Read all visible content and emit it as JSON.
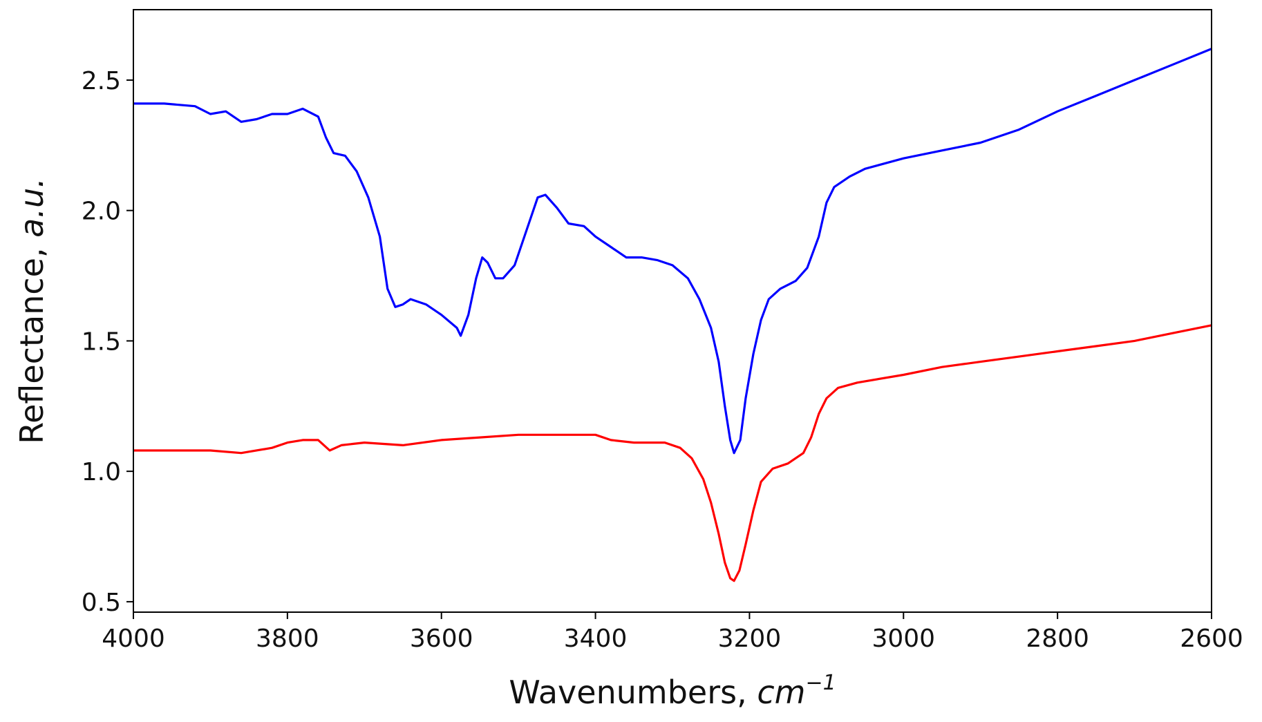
{
  "chart_data": {
    "type": "line",
    "title": "",
    "xlabel": "Wavenumbers, ",
    "xlabel_unit": "cm",
    "xlabel_unit_exp": "−1",
    "ylabel": "Reflectance, ",
    "ylabel_italic": "a.u.",
    "xlim": [
      4000,
      2600
    ],
    "ylim": [
      0.46,
      2.77
    ],
    "x_reversed": true,
    "xticks": [
      4000,
      3800,
      3600,
      3400,
      3200,
      3000,
      2800,
      2600
    ],
    "xtick_labels": [
      "4000",
      "3800",
      "3600",
      "3400",
      "3200",
      "3000",
      "2800",
      "2600"
    ],
    "yticks": [
      0.5,
      1.0,
      1.5,
      2.0,
      2.5
    ],
    "ytick_labels": [
      "0.5",
      "1.0",
      "1.5",
      "2.0",
      "2.5"
    ],
    "grid": false,
    "legend": "none",
    "series": [
      {
        "color": "#0000ff",
        "points": [
          [
            4000,
            2.41
          ],
          [
            3960,
            2.41
          ],
          [
            3920,
            2.4
          ],
          [
            3900,
            2.37
          ],
          [
            3880,
            2.38
          ],
          [
            3860,
            2.34
          ],
          [
            3840,
            2.35
          ],
          [
            3820,
            2.37
          ],
          [
            3800,
            2.37
          ],
          [
            3780,
            2.39
          ],
          [
            3760,
            2.36
          ],
          [
            3750,
            2.28
          ],
          [
            3740,
            2.22
          ],
          [
            3725,
            2.21
          ],
          [
            3710,
            2.15
          ],
          [
            3695,
            2.05
          ],
          [
            3680,
            1.9
          ],
          [
            3670,
            1.7
          ],
          [
            3660,
            1.63
          ],
          [
            3650,
            1.64
          ],
          [
            3640,
            1.66
          ],
          [
            3620,
            1.64
          ],
          [
            3600,
            1.6
          ],
          [
            3580,
            1.55
          ],
          [
            3575,
            1.52
          ],
          [
            3565,
            1.6
          ],
          [
            3555,
            1.74
          ],
          [
            3547,
            1.82
          ],
          [
            3540,
            1.8
          ],
          [
            3530,
            1.74
          ],
          [
            3520,
            1.74
          ],
          [
            3505,
            1.79
          ],
          [
            3490,
            1.92
          ],
          [
            3475,
            2.05
          ],
          [
            3465,
            2.06
          ],
          [
            3450,
            2.01
          ],
          [
            3435,
            1.95
          ],
          [
            3415,
            1.94
          ],
          [
            3400,
            1.9
          ],
          [
            3380,
            1.86
          ],
          [
            3360,
            1.82
          ],
          [
            3340,
            1.82
          ],
          [
            3320,
            1.81
          ],
          [
            3300,
            1.79
          ],
          [
            3280,
            1.74
          ],
          [
            3265,
            1.66
          ],
          [
            3250,
            1.55
          ],
          [
            3240,
            1.42
          ],
          [
            3232,
            1.25
          ],
          [
            3225,
            1.12
          ],
          [
            3220,
            1.07
          ],
          [
            3212,
            1.12
          ],
          [
            3205,
            1.28
          ],
          [
            3195,
            1.45
          ],
          [
            3185,
            1.58
          ],
          [
            3175,
            1.66
          ],
          [
            3160,
            1.7
          ],
          [
            3140,
            1.73
          ],
          [
            3125,
            1.78
          ],
          [
            3110,
            1.9
          ],
          [
            3100,
            2.03
          ],
          [
            3090,
            2.09
          ],
          [
            3070,
            2.13
          ],
          [
            3050,
            2.16
          ],
          [
            3000,
            2.2
          ],
          [
            2950,
            2.23
          ],
          [
            2900,
            2.26
          ],
          [
            2850,
            2.31
          ],
          [
            2800,
            2.38
          ],
          [
            2750,
            2.44
          ],
          [
            2700,
            2.5
          ],
          [
            2650,
            2.56
          ],
          [
            2600,
            2.62
          ]
        ]
      },
      {
        "color": "#ff0000",
        "points": [
          [
            4000,
            1.08
          ],
          [
            3950,
            1.08
          ],
          [
            3900,
            1.08
          ],
          [
            3860,
            1.07
          ],
          [
            3820,
            1.09
          ],
          [
            3800,
            1.11
          ],
          [
            3780,
            1.12
          ],
          [
            3760,
            1.12
          ],
          [
            3745,
            1.08
          ],
          [
            3730,
            1.1
          ],
          [
            3700,
            1.11
          ],
          [
            3650,
            1.1
          ],
          [
            3600,
            1.12
          ],
          [
            3550,
            1.13
          ],
          [
            3500,
            1.14
          ],
          [
            3450,
            1.14
          ],
          [
            3400,
            1.14
          ],
          [
            3380,
            1.12
          ],
          [
            3350,
            1.11
          ],
          [
            3310,
            1.11
          ],
          [
            3290,
            1.09
          ],
          [
            3275,
            1.05
          ],
          [
            3260,
            0.97
          ],
          [
            3250,
            0.88
          ],
          [
            3240,
            0.76
          ],
          [
            3232,
            0.65
          ],
          [
            3225,
            0.59
          ],
          [
            3220,
            0.58
          ],
          [
            3213,
            0.62
          ],
          [
            3205,
            0.72
          ],
          [
            3195,
            0.85
          ],
          [
            3185,
            0.96
          ],
          [
            3170,
            1.01
          ],
          [
            3150,
            1.03
          ],
          [
            3130,
            1.07
          ],
          [
            3120,
            1.13
          ],
          [
            3110,
            1.22
          ],
          [
            3100,
            1.28
          ],
          [
            3085,
            1.32
          ],
          [
            3060,
            1.34
          ],
          [
            3000,
            1.37
          ],
          [
            2950,
            1.4
          ],
          [
            2900,
            1.42
          ],
          [
            2850,
            1.44
          ],
          [
            2800,
            1.46
          ],
          [
            2750,
            1.48
          ],
          [
            2700,
            1.5
          ],
          [
            2650,
            1.53
          ],
          [
            2600,
            1.56
          ]
        ]
      }
    ]
  }
}
